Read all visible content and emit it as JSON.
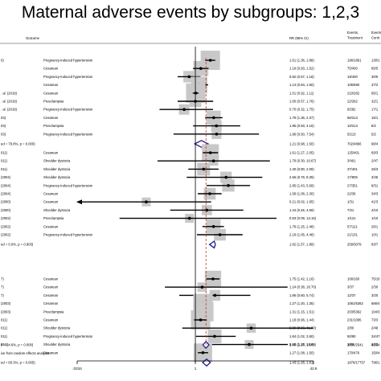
{
  "chart_data": {
    "type": "forest",
    "title": "Maternal adverse events by subgroups: 1,2,3",
    "columns": {
      "outcome": "Outcome",
      "rr": "RR (95% CI)",
      "events_treatment": [
        "Events,",
        "Treatment"
      ],
      "events_control": [
        "Events",
        "Contr"
      ]
    },
    "x_ticks": [
      ".0234",
      "1",
      "42.6"
    ],
    "x_range": [
      0.0234,
      42.6
    ],
    "x_scale": "log",
    "footnote": "ive from random effects analysis",
    "overall_label": "d = 64.6%, p = 0.000)",
    "overall": {
      "rr": 1.4,
      "lo": 1.27,
      "hi": 1.54,
      "rr_text": "1.40 (1.27, 1.54)",
      "events_treatment": "2830/2541",
      "events_control": "81/24"
    },
    "groups": [
      {
        "heterogeneity_label": "ed = 79.8%, p = 0.000)",
        "subtotal": {
          "rr": 1.21,
          "lo": 0.98,
          "hi": 1.5,
          "rr_text": "1.21 (0.98, 1.50)",
          "events_treatment": "702/4866",
          "events_control": "98/4"
        },
        "rows": [
          {
            "study": "0)",
            "outcome": "Pregnancy-induced hypertension",
            "rr": 1.61,
            "lo": 1.36,
            "hi": 1.88,
            "rr_text": "1.61 (1.36, 1.88)",
            "events_treatment": "196/1861",
            "events_control": "130/1"
          },
          {
            "study": "",
            "outcome": "Cesarean",
            "rr": 1.19,
            "lo": 0.93,
            "hi": 1.52,
            "rr_text": "1.19 (0.93, 1.52)",
            "events_treatment": "75/400",
            "events_control": "95/5"
          },
          {
            "study": "",
            "outcome": "Pregnancy-induced hypertension",
            "rr": 0.82,
            "lo": 0.57,
            "hi": 1.18,
            "rr_text": "0.82 (0.57, 1.18)",
            "events_treatment": "19/400",
            "events_control": "30/5"
          },
          {
            "study": "",
            "outcome": "Cesarean",
            "rr": 1.13,
            "lo": 0.84,
            "hi": 1.5,
            "rr_text": "1.13 (0.84, 1.50)",
            "events_treatment": "105/690",
            "events_control": "37/2"
          },
          {
            "study": ". al. (2019)",
            "outcome": "Cesarean",
            "rr": 1.01,
            "lo": 0.92,
            "hi": 1.11,
            "rr_text": "1.01 (0.92, 1.11)",
            "events_treatment": "210/282",
            "events_control": "95/1"
          },
          {
            "study": ". al. (2019)",
            "outcome": "Preeclampsia",
            "rr": 1.0,
            "lo": 0.57,
            "hi": 1.76,
            "rr_text": "1.00 (0.57, 1.76)",
            "events_treatment": "22/282",
            "events_control": "32/1"
          },
          {
            "study": ". al. (2019)",
            "outcome": "Pregnancy-induced hypertension",
            "rr": 0.7,
            "lo": 0.32,
            "hi": 1.75,
            "rr_text": "0.70 (0.32, 1.75)",
            "events_treatment": "9/282",
            "events_control": "17/1"
          },
          {
            "study": "03)",
            "outcome": "Cesarean",
            "rr": 1.79,
            "lo": 1.36,
            "hi": 2.37,
            "rr_text": "1.79 (1.36, 2.37)",
            "events_treatment": "56/213",
            "events_control": "15/1"
          },
          {
            "study": "03)",
            "outcome": "Preeclampsia",
            "rr": 1.95,
            "lo": 0.93,
            "hi": 4.16,
            "rr_text": "1.95 (0.93, 4.16)",
            "events_treatment": "10/213",
            "events_control": "8/2"
          },
          {
            "study": "03)",
            "outcome": "Pregnancy-induced hypertension",
            "rr": 1.96,
            "lo": 0.5,
            "hi": 7.54,
            "rr_text": "1.96 (0.50, 7.54)",
            "events_treatment": "5/213",
            "events_control": "5/2"
          }
        ]
      },
      {
        "heterogeneity_label": "ed = 0.0%, p = 0.903)",
        "subtotal": {
          "rr": 1.82,
          "lo": 1.57,
          "hi": 1.89,
          "rr_text": "1.82 (1.57, 1.89)",
          "events_treatment": "259/3079",
          "events_control": "83/7"
        },
        "rows": [
          {
            "study": "011)",
            "outcome": "Cesarean",
            "rr": 1.61,
            "lo": 1.27,
            "hi": 2.05,
            "rr_text": "1.61 (1.27, 2.05)",
            "events_treatment": "125/401",
            "events_control": "69/3"
          },
          {
            "study": "011)",
            "outcome": "Shoulder dystocia",
            "rr": 1.78,
            "lo": 0.3,
            "hi": 10.67,
            "rr_text": "1.78 (0.30, 10.67)",
            "events_treatment": "3/401",
            "events_control": "2/47"
          },
          {
            "study": "011)",
            "outcome": "Shoulder dystocia",
            "rr": 1.3,
            "lo": 0.8,
            "hi": 2.09,
            "rr_text": "1.30 (0.80, 2.09)",
            "events_treatment": "37/401",
            "events_control": "26/3"
          },
          {
            "study": "(2004)",
            "outcome": "Shoulder dystocia",
            "rr": 2.65,
            "lo": 0.76,
            "hi": 8.39,
            "rr_text": "2.65 (0.76, 8.39)",
            "events_treatment": "17/805",
            "events_control": "3/45"
          },
          {
            "study": "(2004)",
            "outcome": "Pregnancy-induced hypertension",
            "rr": 2.85,
            "lo": 1.43,
            "hi": 5.69,
            "rr_text": "2.85 (1.43, 5.69)",
            "events_treatment": "27/351",
            "events_control": "9/31"
          },
          {
            "study": "(2004)",
            "outcome": "Cesarean",
            "rr": 1.58,
            "lo": 1.08,
            "hi": 2.3,
            "rr_text": "1.58 (1.08, 2.30)",
            "events_treatment": "22/36",
            "events_control": "34/3"
          },
          {
            "study": "(2000)",
            "outcome": "Cesarean",
            "rr": 0.21,
            "lo": 0.02,
            "hi": 1.65,
            "rr_text": "0.21 (0.02, 1.65)",
            "events_treatment": "1/31",
            "events_control": "41/3"
          },
          {
            "study": "(2000)",
            "outcome": "Shoulder dystocia",
            "rr": 1.44,
            "lo": 0.45,
            "hi": 4.59,
            "rr_text": "1.44 (0.45, 4.59)",
            "events_treatment": "7/31",
            "events_control": "4/10"
          },
          {
            "study": "(2002)",
            "outcome": "Preeclampsia",
            "rr": 0.83,
            "lo": 0.09,
            "hi": 13.15,
            "rr_text": "0.83 (0.09, 13.15)",
            "events_treatment": "1/121",
            "events_control": "1/10"
          },
          {
            "study": "(2002)",
            "outcome": "Cesarean",
            "rr": 1.78,
            "lo": 1.25,
            "hi": 2.48,
            "rr_text": "1.78 (1.25, 2.48)",
            "events_treatment": "57/121",
            "events_control": "26/1"
          },
          {
            "study": "(2002)",
            "outcome": "Pregnancy-induced hypertension",
            "rr": 2.18,
            "lo": 1.05,
            "hi": 4.48,
            "rr_text": "2.18 (1.05, 4.48)",
            "events_treatment": "21/131",
            "events_control": "10/1"
          }
        ]
      },
      {
        "heterogeneity_label": "ed = 60.3%, p = 0.005)",
        "subtotal": {
          "rr": 1.43,
          "lo": 1.26,
          "hi": 1.61,
          "rr_text": "1.43 (1.26, 1.61)",
          "events_treatment": "1879/17757",
          "events_control": "796/1"
        },
        "rows": [
          {
            "study": "7)",
            "outcome": "Cesarean",
            "rr": 1.75,
            "lo": 1.42,
            "hi": 2.16,
            "rr_text": "1.75 (1.42, 2.16)",
            "events_treatment": "106/160",
            "events_control": "75/10"
          },
          {
            "study": "7)",
            "outcome": "Cesarean",
            "rr": 1.24,
            "lo": 0.38,
            "hi": 18.7,
            "rr_text": "1.24 (0.38, 18.70)",
            "events_treatment": "3/37",
            "events_control": "2/30"
          },
          {
            "study": "7)",
            "outcome": "Cesarean",
            "rr": 1.86,
            "lo": 0.6,
            "hi": 5.74,
            "rr_text": "1.86 (0.60, 5.74)",
            "events_treatment": "12/37",
            "events_control": "3/20"
          },
          {
            "study": "(2003)",
            "outcome": "Cesarean",
            "rr": 1.27,
            "lo": 1.2,
            "hi": 1.35,
            "rr_text": "1.27 (1.20, 1.35)",
            "events_treatment": "1081/5362",
            "events_control": "566/4"
          },
          {
            "study": "(2003)",
            "outcome": "Preeclampsia",
            "rr": 1.31,
            "lo": 1.15,
            "hi": 1.51,
            "rr_text": "1.31 (1.15, 1.51)",
            "events_treatment": "203/5362",
            "events_control": "104/3"
          },
          {
            "study": "011)",
            "outcome": "Cesarean",
            "rr": 1.18,
            "lo": 0.96,
            "hi": 1.44,
            "rr_text": "1.18 (0.96, 1.44)",
            "events_treatment": "231/1095",
            "events_control": "73/3"
          },
          {
            "study": "011)",
            "outcome": "Shoulder dystocia",
            "rr": 5.89,
            "lo": 0.66,
            "hi": 41.9,
            "rr_text": "5.89 (0.66, 41.90)",
            "events_treatment": "2/80",
            "events_control": "2/48"
          },
          {
            "study": "011)",
            "outcome": "Pregnancy-induced hypertension",
            "rr": 1.84,
            "lo": 1.02,
            "hi": 3.6,
            "rr_text": "1.84 (1.02, 3.60)",
            "events_treatment": "50/80",
            "events_control": "34/47"
          },
          {
            "study": "011)",
            "outcome": "Shoulder dystocia",
            "rr": 5.52,
            "lo": 1.15,
            "hi": 18.85,
            "rr_text": "5.52 (1.15, 18.85)",
            "events_treatment": "1/80",
            "events_control": "1/50"
          },
          {
            "study": "",
            "outcome": "Cesarean",
            "rr": 1.27,
            "lo": 1.08,
            "hi": 1.5,
            "rr_text": "1.27 (1.08, 1.50)",
            "events_treatment": "170/476",
            "events_control": "150/4"
          }
        ]
      }
    ]
  }
}
